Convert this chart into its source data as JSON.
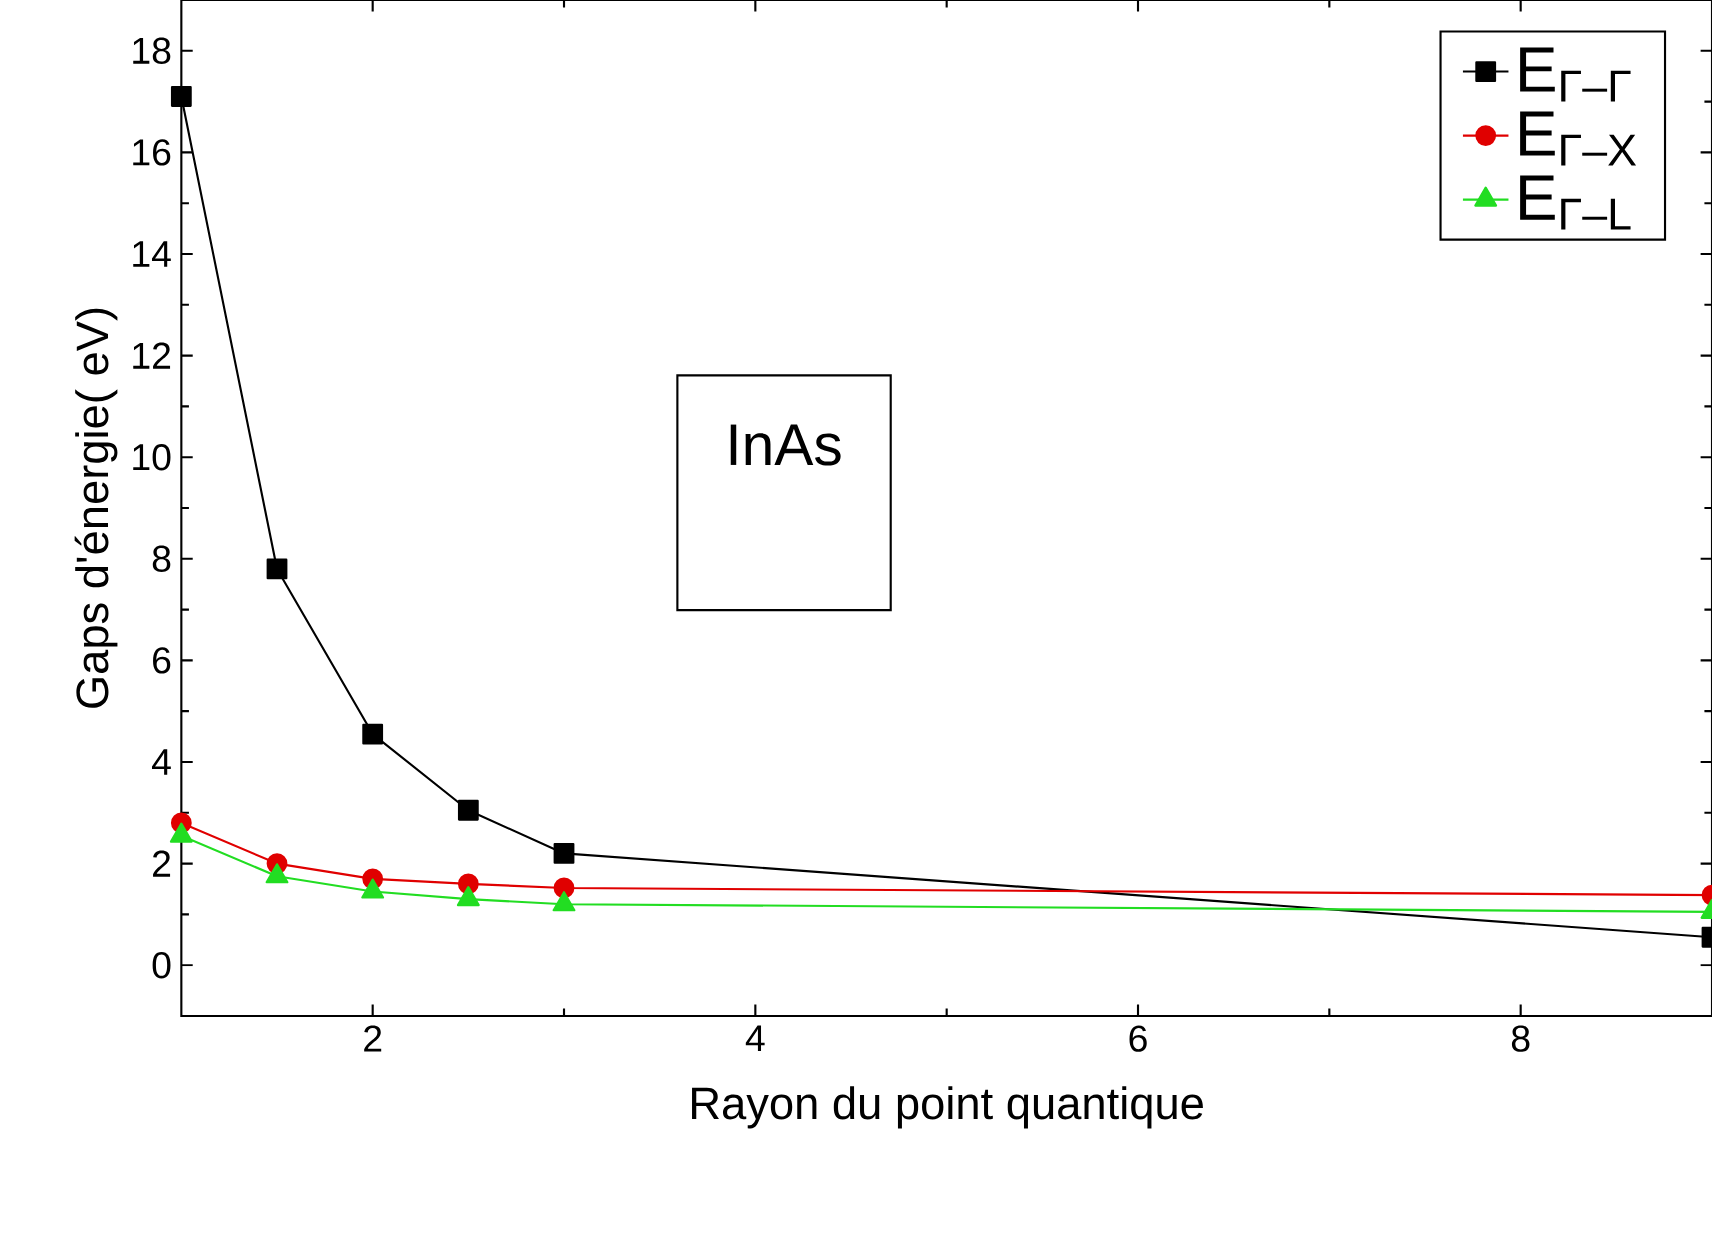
{
  "chart_data": {
    "type": "line",
    "xlabel": "Rayon du point quantique",
    "ylabel": "Gaps d'énergie( eV)",
    "annotations": [
      "InAs"
    ],
    "xlim": [
      1,
      9
    ],
    "ylim": [
      -1,
      19
    ],
    "xticks": [
      2,
      4,
      6,
      8
    ],
    "yticks": [
      0,
      2,
      4,
      6,
      8,
      10,
      12,
      14,
      16,
      18
    ],
    "legend": "top right",
    "grid": false,
    "series": [
      {
        "name": "E$_{Γ–Γ}$",
        "color": "#000000",
        "marker": "square",
        "x": [
          1,
          1.5,
          2,
          2.5,
          3,
          9
        ],
        "values": [
          17.1,
          7.8,
          4.55,
          3.05,
          2.2,
          0.55
        ]
      },
      {
        "name": "E$_{Γ–X}$",
        "color": "#e00000",
        "marker": "circle",
        "x": [
          1,
          1.5,
          2,
          2.5,
          3,
          9
        ],
        "values": [
          2.8,
          2.0,
          1.7,
          1.6,
          1.52,
          1.38
        ]
      },
      {
        "name": "E$_{Γ–L}$",
        "color": "#22dd22",
        "marker": "triangle",
        "x": [
          1,
          1.5,
          2,
          2.5,
          3,
          9
        ],
        "values": [
          2.55,
          1.75,
          1.45,
          1.3,
          1.2,
          1.05
        ]
      }
    ]
  }
}
